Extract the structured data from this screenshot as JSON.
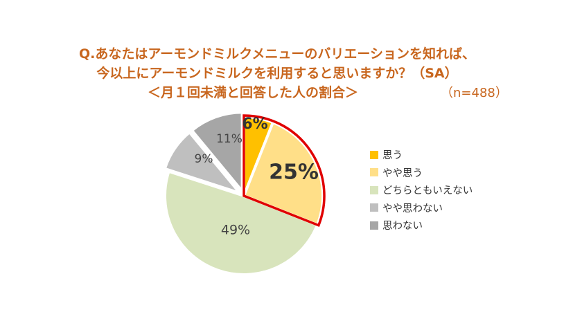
{
  "title": {
    "line1": "Q.あなたはアーモンドミルクメニューのバリエーションを知れば、",
    "line2": "今以上にアーモンドミルクを利用すると思いますか？（SA）",
    "line3": "＜月１回未満と回答した人の割合＞",
    "sample": "（n=488）"
  },
  "colors": {
    "title": "#c8661e",
    "highlight_border": "#e00000"
  },
  "legend": [
    {
      "label": "思う",
      "color": "#ffc000"
    },
    {
      "label": "やや思う",
      "color": "#ffdf88"
    },
    {
      "label": "どちらともいえない",
      "color": "#d8e4bc"
    },
    {
      "label": "やや思わない",
      "color": "#bfbfbf"
    },
    {
      "label": "思わない",
      "color": "#a6a6a6"
    }
  ],
  "chart_data": {
    "type": "pie",
    "title": "Q.あなたはアーモンドミルクメニューのバリエーションを知れば、今以上にアーモンドミルクを利用すると思いますか？（SA） ＜月１回未満と回答した人の割合＞",
    "n": 488,
    "categories": [
      "思う",
      "やや思う",
      "どちらともいえない",
      "やや思わない",
      "思わない"
    ],
    "values": [
      6,
      25,
      49,
      9,
      11
    ],
    "labels": [
      "6%",
      "25%",
      "49%",
      "9%",
      "11%"
    ],
    "colors": [
      "#ffc000",
      "#ffdf88",
      "#d8e4bc",
      "#bfbfbf",
      "#a6a6a6"
    ],
    "start_angle": "12 o'clock, clockwise",
    "highlight": "思う + やや思う (31%) outlined in red",
    "exploded": [
      "やや思わない",
      "思わない"
    ],
    "legend_position": "right"
  }
}
